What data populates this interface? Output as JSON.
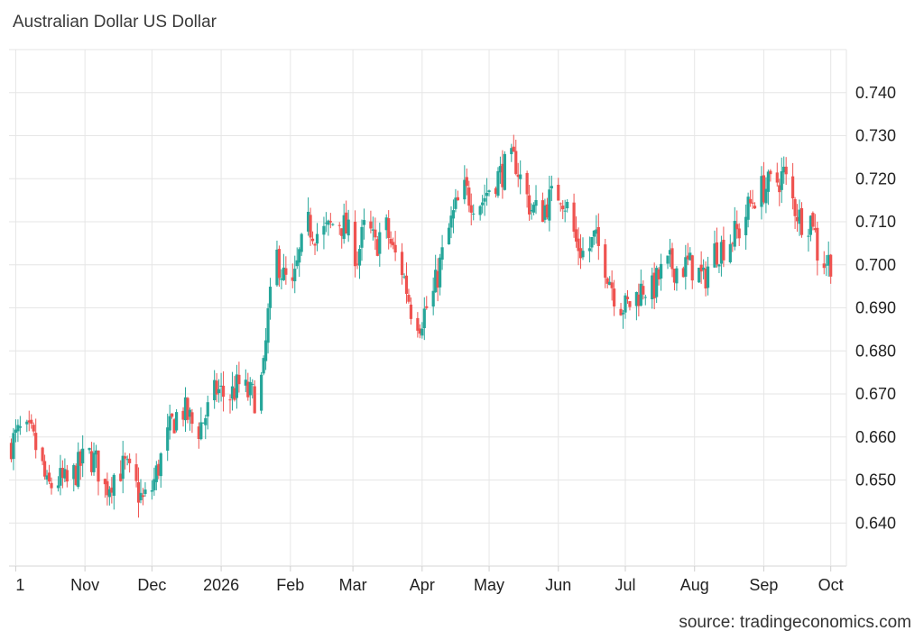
{
  "chart_title": "Australian Dollar US Dollar",
  "source": "source: tradingeconomics.com",
  "colors": {
    "up": "#26a69a",
    "down": "#ef5350",
    "grid": "#e6e6e6"
  },
  "chart_data": {
    "type": "candlestick",
    "title": "Australian Dollar US Dollar",
    "xlabel": "",
    "ylabel": "",
    "grid": true,
    "ylim": [
      0.63,
      0.75
    ],
    "y_ticks": [
      {
        "value": 0.74,
        "label": "0.740"
      },
      {
        "value": 0.73,
        "label": "0.730"
      },
      {
        "value": 0.72,
        "label": "0.720"
      },
      {
        "value": 0.71,
        "label": "0.710"
      },
      {
        "value": 0.7,
        "label": "0.700"
      },
      {
        "value": 0.69,
        "label": "0.690"
      },
      {
        "value": 0.68,
        "label": "0.680"
      },
      {
        "value": 0.67,
        "label": "0.670"
      },
      {
        "value": 0.66,
        "label": "0.660"
      },
      {
        "value": 0.65,
        "label": "0.650"
      },
      {
        "value": 0.64,
        "label": "0.640"
      }
    ],
    "x_ticks": [
      {
        "date": "2025-10-01",
        "label": "1"
      },
      {
        "date": "2025-11-01",
        "label": "Nov"
      },
      {
        "date": "2025-12-01",
        "label": "Dec"
      },
      {
        "date": "2026-01-01",
        "label": "2026"
      },
      {
        "date": "2026-02-01",
        "label": "Feb"
      },
      {
        "date": "2026-03-01",
        "label": "Mar"
      },
      {
        "date": "2026-04-01",
        "label": "Apr"
      },
      {
        "date": "2026-05-01",
        "label": "May"
      },
      {
        "date": "2026-06-01",
        "label": "Jun"
      },
      {
        "date": "2026-07-01",
        "label": "Jul"
      },
      {
        "date": "2026-08-01",
        "label": "Aug"
      },
      {
        "date": "2026-09-01",
        "label": "Sep"
      },
      {
        "date": "2026-10-01",
        "label": "Oct"
      }
    ],
    "xlim": [
      "2025-09-28",
      "2026-10-08"
    ],
    "close_path": [
      [
        "2025-09-28",
        0.658
      ],
      [
        "2025-10-03",
        0.661
      ],
      [
        "2025-10-08",
        0.66
      ],
      [
        "2025-10-12",
        0.655
      ],
      [
        "2025-10-15",
        0.648
      ],
      [
        "2025-10-20",
        0.65
      ],
      [
        "2025-10-24",
        0.649
      ],
      [
        "2025-10-28",
        0.652
      ],
      [
        "2025-11-02",
        0.656
      ],
      [
        "2025-11-06",
        0.654
      ],
      [
        "2025-11-10",
        0.648
      ],
      [
        "2025-11-15",
        0.652
      ],
      [
        "2025-11-19",
        0.653
      ],
      [
        "2025-11-23",
        0.649
      ],
      [
        "2025-11-27",
        0.645
      ],
      [
        "2025-12-01",
        0.648
      ],
      [
        "2025-12-05",
        0.655
      ],
      [
        "2025-12-10",
        0.663
      ],
      [
        "2025-12-14",
        0.667
      ],
      [
        "2025-12-18",
        0.664
      ],
      [
        "2025-12-21",
        0.661
      ],
      [
        "2025-12-26",
        0.666
      ],
      [
        "2025-12-30",
        0.671
      ],
      [
        "2026-01-04",
        0.669
      ],
      [
        "2026-01-09",
        0.672
      ],
      [
        "2026-01-13",
        0.67
      ],
      [
        "2026-01-17",
        0.669
      ],
      [
        "2026-01-20",
        0.675
      ],
      [
        "2026-01-22",
        0.688
      ],
      [
        "2026-01-26",
        0.702
      ],
      [
        "2026-01-29",
        0.697
      ],
      [
        "2026-02-02",
        0.694
      ],
      [
        "2026-02-05",
        0.702
      ],
      [
        "2026-02-09",
        0.709
      ],
      [
        "2026-02-14",
        0.707
      ],
      [
        "2026-02-18",
        0.708
      ],
      [
        "2026-02-22",
        0.711
      ],
      [
        "2026-02-26",
        0.708
      ],
      [
        "2026-03-03",
        0.702
      ],
      [
        "2026-03-07",
        0.71
      ],
      [
        "2026-03-11",
        0.704
      ],
      [
        "2026-03-15",
        0.71
      ],
      [
        "2026-03-19",
        0.703
      ],
      [
        "2026-03-23",
        0.699
      ],
      [
        "2026-03-27",
        0.69
      ],
      [
        "2026-03-31",
        0.687
      ],
      [
        "2026-04-03",
        0.69
      ],
      [
        "2026-04-06",
        0.693
      ],
      [
        "2026-04-09",
        0.7
      ],
      [
        "2026-04-13",
        0.708
      ],
      [
        "2026-04-16",
        0.713
      ],
      [
        "2026-04-20",
        0.717
      ],
      [
        "2026-04-24",
        0.715
      ],
      [
        "2026-04-28",
        0.715
      ],
      [
        "2026-05-02",
        0.719
      ],
      [
        "2026-05-06",
        0.721
      ],
      [
        "2026-05-09",
        0.723
      ],
      [
        "2026-05-13",
        0.724
      ],
      [
        "2026-05-16",
        0.718
      ],
      [
        "2026-05-20",
        0.713
      ],
      [
        "2026-05-24",
        0.712
      ],
      [
        "2026-05-28",
        0.715
      ],
      [
        "2026-06-02",
        0.717
      ],
      [
        "2026-06-06",
        0.712
      ],
      [
        "2026-06-09",
        0.705
      ],
      [
        "2026-06-13",
        0.702
      ],
      [
        "2026-06-17",
        0.706
      ],
      [
        "2026-06-21",
        0.702
      ],
      [
        "2026-06-24",
        0.697
      ],
      [
        "2026-06-27",
        0.692
      ],
      [
        "2026-07-01",
        0.69
      ],
      [
        "2026-07-05",
        0.692
      ],
      [
        "2026-07-09",
        0.695
      ],
      [
        "2026-07-13",
        0.694
      ],
      [
        "2026-07-17",
        0.698
      ],
      [
        "2026-07-21",
        0.7
      ],
      [
        "2026-07-25",
        0.699
      ],
      [
        "2026-07-29",
        0.7
      ],
      [
        "2026-08-02",
        0.699
      ],
      [
        "2026-08-05",
        0.696
      ],
      [
        "2026-08-09",
        0.703
      ],
      [
        "2026-08-13",
        0.704
      ],
      [
        "2026-08-17",
        0.706
      ],
      [
        "2026-08-21",
        0.708
      ],
      [
        "2026-08-25",
        0.713
      ],
      [
        "2026-08-29",
        0.717
      ],
      [
        "2026-09-02",
        0.718
      ],
      [
        "2026-09-06",
        0.719
      ],
      [
        "2026-09-10",
        0.721
      ],
      [
        "2026-09-13",
        0.716
      ],
      [
        "2026-09-17",
        0.711
      ],
      [
        "2026-09-20",
        0.71
      ],
      [
        "2026-09-23",
        0.711
      ],
      [
        "2026-09-25",
        0.703
      ],
      [
        "2026-09-28",
        0.701
      ],
      [
        "2026-10-01",
        0.701
      ]
    ]
  }
}
